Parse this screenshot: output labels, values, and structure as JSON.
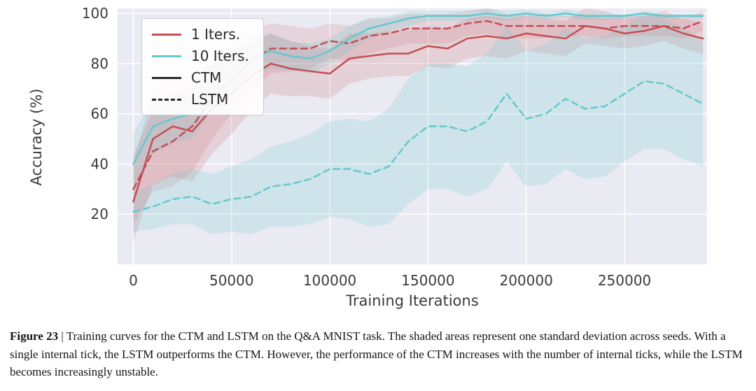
{
  "caption": {
    "label": "Figure 23",
    "separator": " | ",
    "body": "Training curves for the CTM and LSTM on the Q&A MNIST task. The shaded areas represent one standard deviation across seeds. With a single internal tick, the LSTM outperforms the CTM. However, the performance of the CTM increases with the number of internal ticks, while the LSTM becomes increasingly unstable."
  },
  "chart_data": {
    "type": "line",
    "title": "",
    "xlabel": "Training Iterations",
    "ylabel": "Accuracy (%)",
    "xlim": [
      -8000,
      292000
    ],
    "ylim": [
      0,
      102
    ],
    "plot_bg": "#eaeaf2",
    "grid": true,
    "grid_color": "#ffffff",
    "legend_position": "upper-left",
    "xticks": {
      "values": [
        0,
        50000,
        100000,
        150000,
        200000,
        250000
      ],
      "labels": [
        "0",
        "50000",
        "100000",
        "150000",
        "200000",
        "250000"
      ]
    },
    "yticks": {
      "values": [
        20,
        40,
        60,
        80,
        100
      ],
      "labels": [
        "20",
        "40",
        "60",
        "80",
        "100"
      ]
    },
    "x": [
      0,
      10000,
      20000,
      30000,
      40000,
      50000,
      60000,
      70000,
      80000,
      90000,
      100000,
      110000,
      120000,
      130000,
      140000,
      150000,
      160000,
      170000,
      180000,
      190000,
      200000,
      210000,
      220000,
      230000,
      240000,
      250000,
      260000,
      270000,
      280000,
      290000
    ],
    "series": [
      {
        "name": "CTM 1 Iters.",
        "model": "CTM",
        "iters": 1,
        "color": "#c44e52",
        "dash": "solid",
        "band_opacity": 0.16,
        "values": [
          25,
          50,
          55,
          53,
          62,
          68,
          75,
          80,
          78,
          77,
          76,
          82,
          83,
          84,
          84,
          87,
          86,
          90,
          91,
          90,
          92,
          91,
          90,
          95,
          94,
          92,
          93,
          95,
          92,
          90
        ],
        "band": [
          16,
          18,
          20,
          20,
          18,
          16,
          14,
          12,
          11,
          10,
          10,
          10,
          9,
          9,
          9,
          8,
          8,
          8,
          8,
          8,
          7,
          7,
          7,
          7,
          7,
          6,
          6,
          6,
          6,
          6
        ]
      },
      {
        "name": "LSTM 1 Iters.",
        "model": "LSTM",
        "iters": 1,
        "color": "#c44e52",
        "dash": "dashed",
        "band_opacity": 0.14,
        "values": [
          30,
          45,
          49,
          55,
          66,
          74,
          81,
          86,
          86,
          86,
          89,
          88,
          91,
          92,
          94,
          94,
          94,
          96,
          97,
          95,
          95,
          95,
          95,
          95,
          94,
          95,
          95,
          95,
          94,
          97
        ],
        "band": [
          14,
          16,
          18,
          18,
          16,
          14,
          12,
          10,
          9,
          8,
          7,
          7,
          7,
          6,
          6,
          6,
          6,
          5,
          5,
          5,
          5,
          5,
          4,
          4,
          4,
          4,
          4,
          4,
          4,
          4
        ]
      },
      {
        "name": "CTM 10 Iters.",
        "model": "CTM",
        "iters": 10,
        "color": "#64c8ce",
        "dash": "solid",
        "band_opacity": 0.2,
        "values": [
          40,
          55,
          58,
          60,
          70,
          77,
          82,
          85,
          83,
          82,
          85,
          90,
          94,
          96,
          98,
          99,
          99,
          99,
          100,
          99,
          100,
          99,
          100,
          99,
          99,
          99,
          100,
          99,
          99,
          99
        ],
        "band": [
          12,
          11,
          10,
          10,
          9,
          8,
          8,
          7,
          6,
          6,
          5,
          5,
          4,
          3,
          3,
          2,
          2,
          2,
          2,
          2,
          1.5,
          1.5,
          1.5,
          1.5,
          1.5,
          1,
          1,
          1,
          1,
          1
        ]
      },
      {
        "name": "LSTM 10 Iters.",
        "model": "LSTM",
        "iters": 10,
        "color": "#64c8ce",
        "dash": "dashed",
        "band_opacity": 0.2,
        "values": [
          21,
          23,
          26,
          27,
          24,
          26,
          27,
          31,
          32,
          34,
          38,
          38,
          36,
          39,
          49,
          55,
          55,
          53,
          57,
          68,
          58,
          60,
          66,
          62,
          63,
          68,
          73,
          72,
          68,
          64
        ],
        "band": [
          8,
          9,
          10,
          11,
          12,
          13,
          15,
          16,
          17,
          18,
          19,
          20,
          21,
          23,
          25,
          25,
          25,
          26,
          27,
          27,
          27,
          28,
          28,
          28,
          28,
          27,
          27,
          26,
          26,
          25
        ]
      }
    ],
    "legend": [
      {
        "label": "1 Iters.",
        "color": "#c44e52",
        "dash": "solid"
      },
      {
        "label": "10 Iters.",
        "color": "#64c8ce",
        "dash": "solid"
      },
      {
        "label": "CTM",
        "color": "#2a2a2a",
        "dash": "solid"
      },
      {
        "label": "LSTM",
        "color": "#2a2a2a",
        "dash": "dashed"
      }
    ]
  }
}
